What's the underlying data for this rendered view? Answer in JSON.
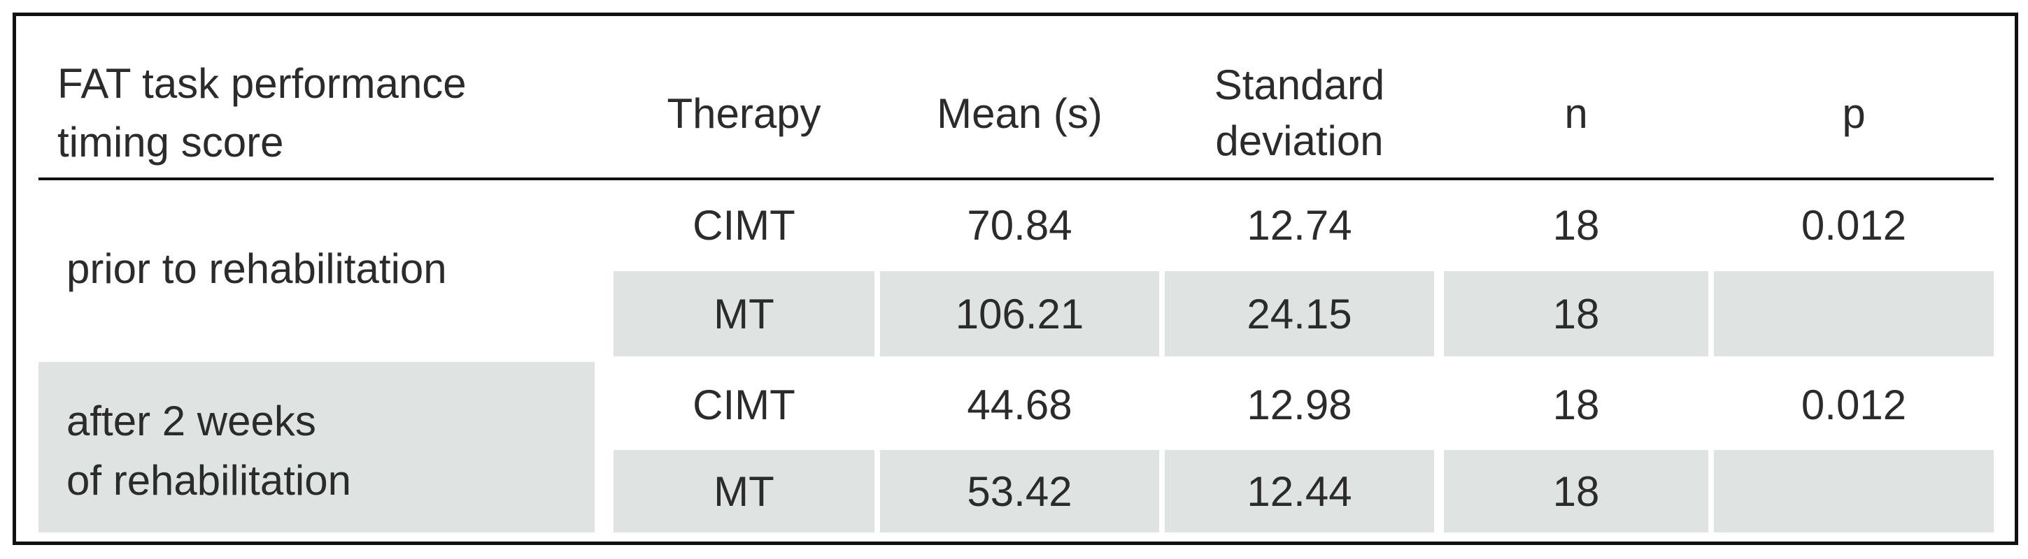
{
  "table": {
    "header": [
      [
        "FAT task performance",
        "timing score"
      ],
      [
        "Therapy"
      ],
      [
        "Mean (s)"
      ],
      [
        "Standard",
        "deviation"
      ],
      [
        "n"
      ],
      [
        "p"
      ]
    ],
    "groups": [
      {
        "label": [
          "prior to rehabilitation"
        ],
        "rows": [
          [
            "CIMT",
            "70.84",
            "12.74",
            "18",
            "0.012"
          ],
          [
            "MT",
            "106.21",
            "24.15",
            "18"
          ]
        ]
      },
      {
        "label": [
          "after 2 weeks",
          "of rehabilitation"
        ],
        "rows": [
          [
            "CIMT",
            "44.68",
            "12.98",
            "18",
            "0.012"
          ],
          [
            "MT",
            "53.42",
            "12.44",
            "18"
          ]
        ]
      }
    ]
  }
}
